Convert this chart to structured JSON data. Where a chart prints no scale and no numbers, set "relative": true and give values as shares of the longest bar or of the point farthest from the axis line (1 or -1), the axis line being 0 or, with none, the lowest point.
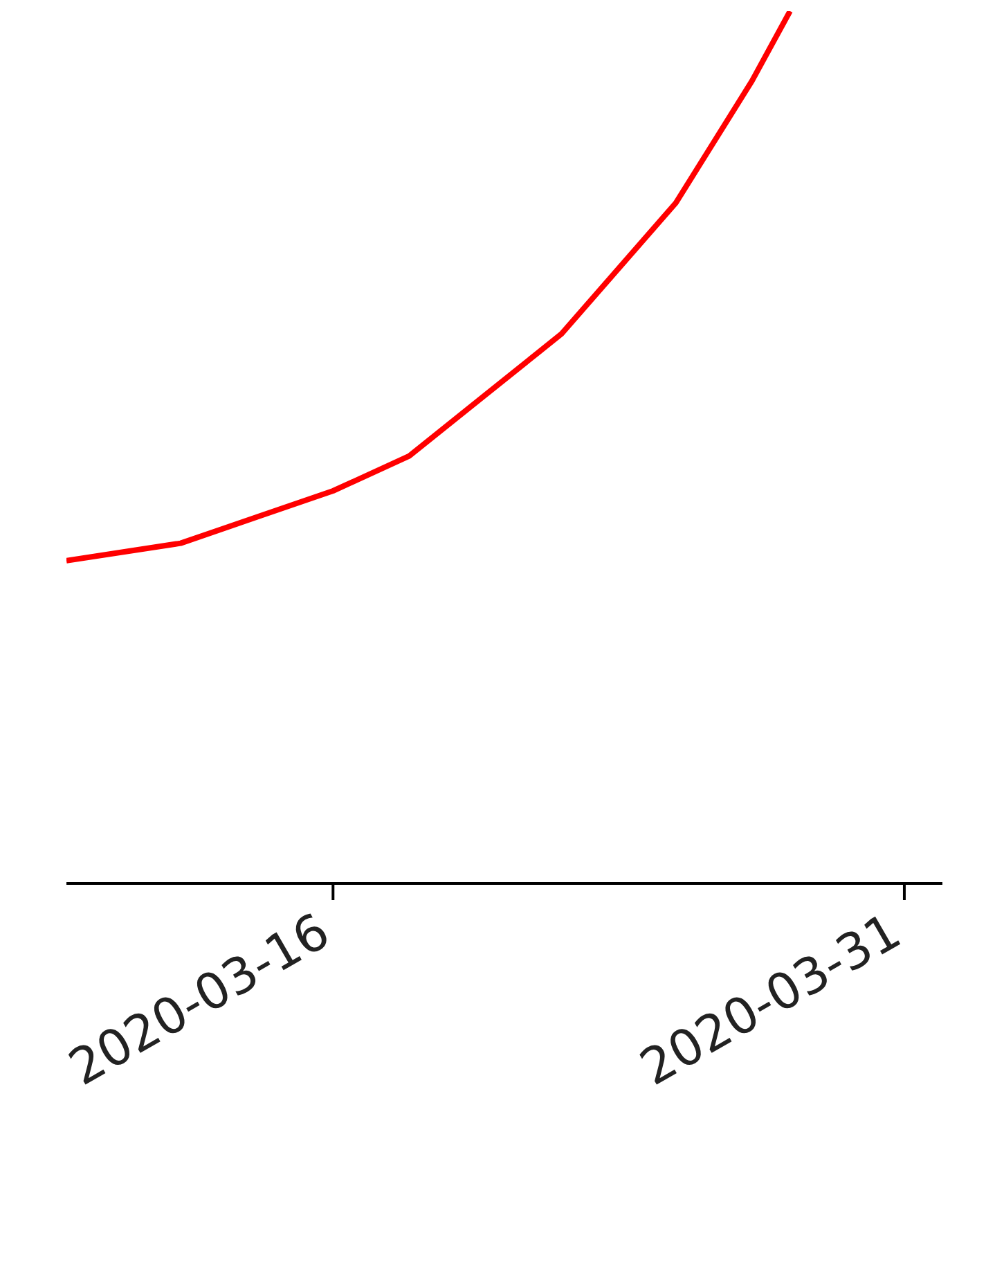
{
  "chart_data": {
    "type": "line",
    "relative": true,
    "x": [
      "2020-03-09",
      "2020-03-12",
      "2020-03-14",
      "2020-03-16",
      "2020-03-18",
      "2020-03-20",
      "2020-03-22",
      "2020-03-24",
      "2020-03-25",
      "2020-03-27",
      "2020-03-28"
    ],
    "series": [
      {
        "color": "#ff0000",
        "values": [
          0.37,
          0.39,
          0.42,
          0.45,
          0.49,
          0.56,
          0.63,
          0.73,
          0.78,
          0.92,
          1
        ]
      }
    ],
    "xlim": [
      "2020-03-09",
      "2020-04-01"
    ],
    "xticks": [
      "2020-03-16",
      "2020-03-31"
    ],
    "grid": false,
    "legend": false,
    "marker": "none",
    "line_style": "solid"
  }
}
